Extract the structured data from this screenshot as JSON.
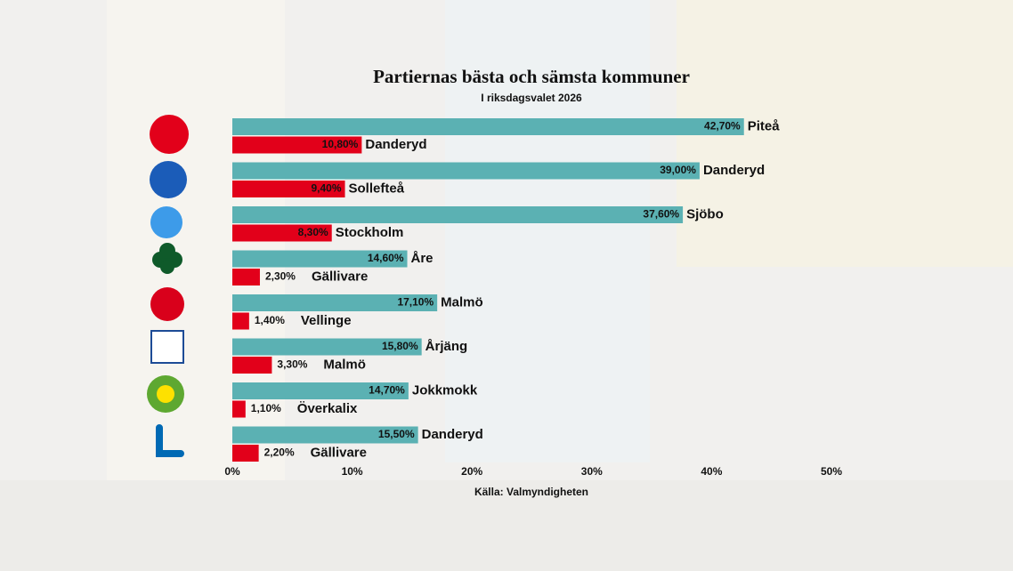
{
  "chart_data": {
    "type": "bar",
    "title": "Partiernas bästa och sämsta kommuner",
    "subtitle": "I riksdagsvalet 2026",
    "source": "Källa: Valmyndigheten",
    "orientation": "horizontal",
    "series": [
      {
        "color": "#5bb1b3",
        "values": [
          42.7,
          39.0,
          37.6,
          14.6,
          17.1,
          15.8,
          14.7,
          15.5
        ],
        "value_labels": [
          "42,70%",
          "39,00%",
          "37,60%",
          "14,60%",
          "17,10%",
          "15,80%",
          "14,70%",
          "15,50%"
        ],
        "place_labels": [
          "Piteå",
          "Danderyd",
          "Sjöbo",
          "Åre",
          "Malmö",
          "Årjäng",
          "Jokkmokk",
          "Danderyd"
        ]
      },
      {
        "color": "#e2001a",
        "values": [
          10.8,
          9.4,
          8.3,
          2.3,
          1.4,
          3.3,
          1.1,
          2.2
        ],
        "value_labels": [
          "10,80%",
          "9,40%",
          "8,30%",
          "2,30%",
          "1,40%",
          "3,30%",
          "1,10%",
          "2,20%"
        ],
        "place_labels": [
          "Danderyd",
          "Sollefteå",
          "Stockholm",
          "Gällivare",
          "Vellinge",
          "Malmö",
          "Överkalix",
          "Gällivare"
        ]
      }
    ],
    "xlim": [
      0,
      50
    ],
    "xticks": [
      {
        "value": 0,
        "label": "0%"
      },
      {
        "value": 10,
        "label": "10%"
      },
      {
        "value": 20,
        "label": "20%"
      },
      {
        "value": 30,
        "label": "30%"
      },
      {
        "value": 40,
        "label": "40%"
      },
      {
        "value": 50,
        "label": "50%"
      }
    ]
  }
}
